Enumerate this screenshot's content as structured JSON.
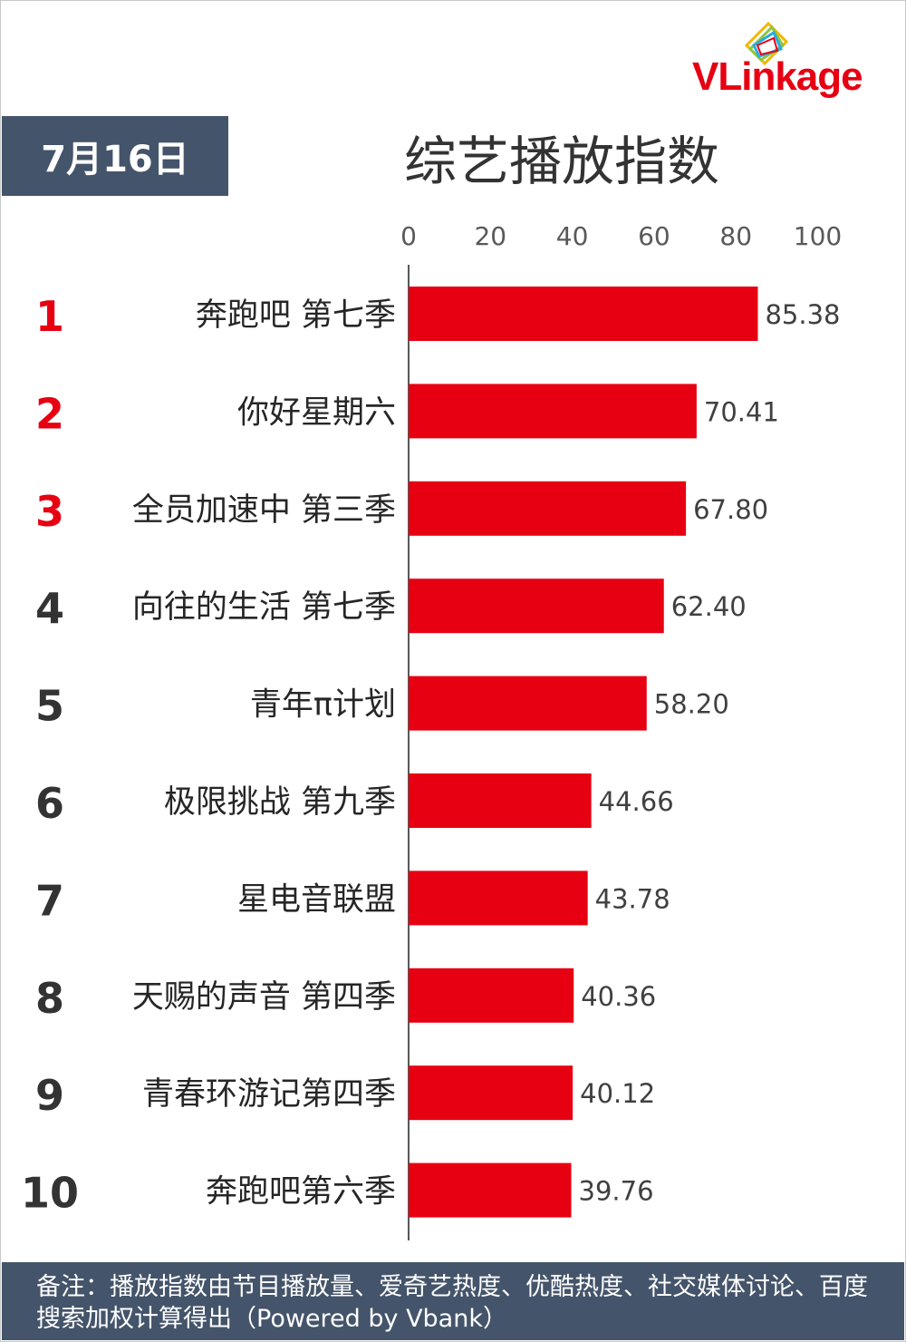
{
  "brand": {
    "logo_text_v": "V",
    "logo_text_rest": "Linkage",
    "colors": {
      "accent": "#e60012",
      "badge": "#44546a"
    }
  },
  "header": {
    "date": "7月16日",
    "title": "综艺播放指数"
  },
  "footer": {
    "note": "备注：播放指数由节目播放量、爱奇艺热度、优酷热度、社交媒体讨论、百度搜索加权计算得出（Powered by Vbank）"
  },
  "chart_data": {
    "type": "bar",
    "orientation": "horizontal",
    "title": "综艺播放指数",
    "xlim": [
      0,
      100
    ],
    "x_ticks": [
      "0",
      "20",
      "40",
      "60",
      "80",
      "100"
    ],
    "tick_values": [
      0,
      20,
      40,
      60,
      80,
      100
    ],
    "grid": false,
    "axis_position": "top",
    "bar_color": "#e60012",
    "rank_colors": {
      "top3": "#e60012",
      "rest": "#333333"
    },
    "ranks": [
      "1",
      "2",
      "3",
      "4",
      "5",
      "6",
      "7",
      "8",
      "9",
      "10"
    ],
    "categories": [
      "奔跑吧 第七季",
      "你好星期六",
      "全员加速中 第三季",
      "向往的生活 第七季",
      "青年π计划",
      "极限挑战 第九季",
      "星电音联盟",
      "天赐的声音 第四季",
      "青春环游记第四季",
      "奔跑吧第六季"
    ],
    "values": [
      85.38,
      70.41,
      67.8,
      62.4,
      58.2,
      44.66,
      43.78,
      40.36,
      40.12,
      39.76
    ],
    "value_labels": [
      "85.38",
      "70.41",
      "67.80",
      "62.40",
      "58.20",
      "44.66",
      "43.78",
      "40.36",
      "40.12",
      "39.76"
    ]
  }
}
